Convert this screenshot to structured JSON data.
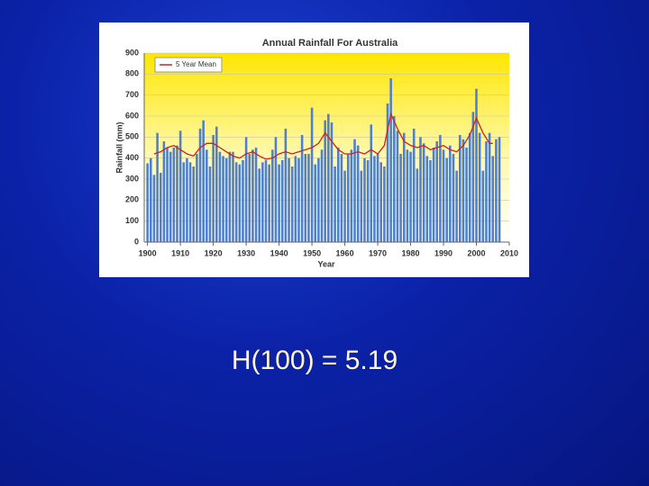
{
  "chart_data": {
    "type": "bar",
    "title": "Annual Rainfall For Australia",
    "x_label": "Year",
    "y_label": "Rainfall (mm)",
    "color": "#4f7fcf",
    "x": [
      1900,
      1901,
      1902,
      1903,
      1904,
      1905,
      1906,
      1907,
      1908,
      1909,
      1910,
      1911,
      1912,
      1913,
      1914,
      1915,
      1916,
      1917,
      1918,
      1919,
      1920,
      1921,
      1922,
      1923,
      1924,
      1925,
      1926,
      1927,
      1928,
      1929,
      1930,
      1931,
      1932,
      1933,
      1934,
      1935,
      1936,
      1937,
      1938,
      1939,
      1940,
      1941,
      1942,
      1943,
      1944,
      1945,
      1946,
      1947,
      1948,
      1949,
      1950,
      1951,
      1952,
      1953,
      1954,
      1955,
      1956,
      1957,
      1958,
      1959,
      1960,
      1961,
      1962,
      1963,
      1964,
      1965,
      1966,
      1967,
      1968,
      1969,
      1970,
      1971,
      1972,
      1973,
      1974,
      1975,
      1976,
      1977,
      1978,
      1979,
      1980,
      1981,
      1982,
      1983,
      1984,
      1985,
      1986,
      1987,
      1988,
      1989,
      1990,
      1991,
      1992,
      1993,
      1994,
      1995,
      1996,
      1997,
      1998,
      1999,
      2000,
      2001,
      2002,
      2003,
      2004,
      2005,
      2006,
      2007
    ],
    "values": [
      375,
      400,
      320,
      520,
      330,
      480,
      450,
      430,
      450,
      460,
      530,
      380,
      400,
      380,
      360,
      420,
      540,
      580,
      440,
      360,
      510,
      550,
      430,
      410,
      400,
      430,
      430,
      380,
      370,
      390,
      500,
      420,
      440,
      450,
      350,
      380,
      390,
      370,
      440,
      500,
      370,
      390,
      540,
      400,
      360,
      410,
      400,
      510,
      420,
      420,
      640,
      370,
      400,
      440,
      580,
      610,
      570,
      360,
      450,
      420,
      340,
      420,
      440,
      490,
      460,
      340,
      400,
      390,
      560,
      410,
      420,
      380,
      360,
      660,
      780,
      600,
      530,
      420,
      520,
      440,
      430,
      540,
      350,
      500,
      470,
      410,
      390,
      450,
      480,
      510,
      440,
      400,
      460,
      420,
      340,
      510,
      490,
      450,
      520,
      620,
      730,
      520,
      340,
      480,
      520,
      410,
      490,
      500
    ],
    "line": {
      "name": "5 Year Mean",
      "color": "#cc2222",
      "x": [
        1902,
        1904,
        1906,
        1908,
        1910,
        1912,
        1914,
        1916,
        1918,
        1920,
        1922,
        1924,
        1926,
        1928,
        1930,
        1932,
        1934,
        1936,
        1938,
        1940,
        1942,
        1944,
        1946,
        1948,
        1950,
        1952,
        1954,
        1956,
        1958,
        1960,
        1962,
        1964,
        1966,
        1968,
        1970,
        1972,
        1974,
        1976,
        1978,
        1980,
        1982,
        1984,
        1986,
        1988,
        1990,
        1992,
        1994,
        1996,
        1998,
        2000,
        2002,
        2004,
        2005
      ],
      "values": [
        420,
        430,
        450,
        460,
        440,
        420,
        410,
        450,
        470,
        470,
        450,
        430,
        410,
        400,
        420,
        430,
        410,
        395,
        400,
        420,
        430,
        420,
        430,
        440,
        450,
        470,
        520,
        480,
        440,
        420,
        420,
        430,
        420,
        440,
        420,
        460,
        610,
        540,
        480,
        460,
        450,
        460,
        440,
        450,
        460,
        440,
        430,
        460,
        510,
        590,
        520,
        470,
        470
      ]
    },
    "xlim": [
      1899,
      2010
    ],
    "xticks": [
      1900,
      1910,
      1920,
      1930,
      1940,
      1950,
      1960,
      1970,
      1980,
      1990,
      2000,
      2010
    ],
    "ylim": [
      0,
      900
    ],
    "yticks": [
      0,
      100,
      200,
      300,
      400,
      500,
      600,
      700,
      800,
      900
    ],
    "grid": true
  },
  "caption": "H(100) = 5.19"
}
